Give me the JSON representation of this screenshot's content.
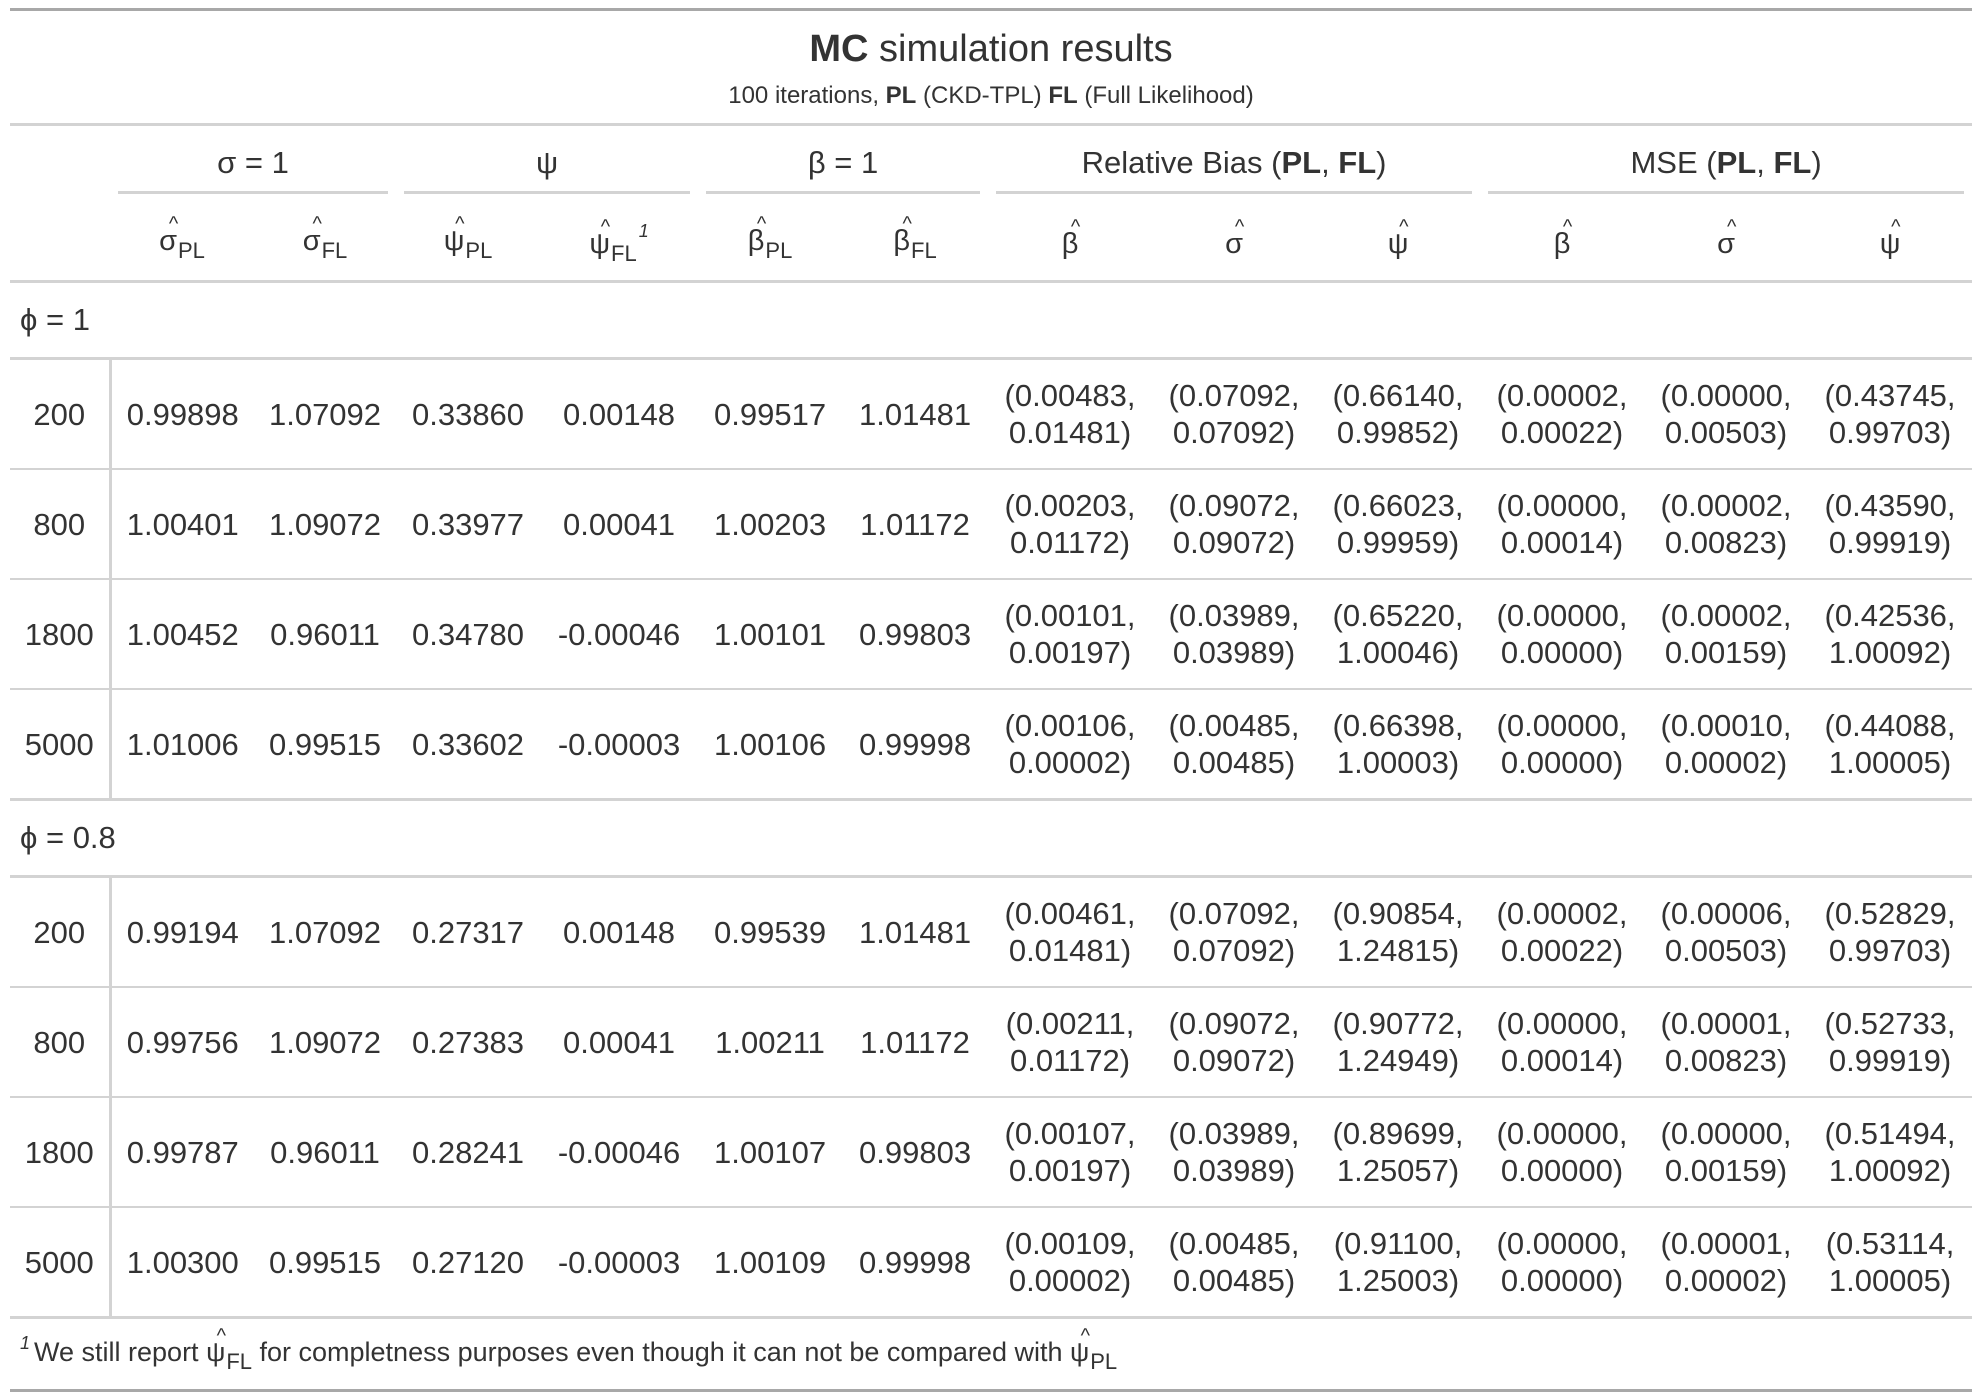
{
  "title": {
    "bold": "MC",
    "rest": " simulation results"
  },
  "subtitle": {
    "pre": "100 iterations, ",
    "pl_bold": "PL",
    "pl_desc": " (CKD-TPL) ",
    "fl_bold": "FL",
    "fl_desc": " (Full Likelihood)"
  },
  "spanners": {
    "sigma": "σ = 1",
    "psi": "ψ",
    "beta": "β = 1",
    "relbias": {
      "pre": "Relative Bias (",
      "a": "PL",
      "sep": ", ",
      "b": "FL",
      "post": ")"
    },
    "mse": {
      "pre": "MSE (",
      "a": "PL",
      "sep": ", ",
      "b": "FL",
      "post": ")"
    }
  },
  "columns": {
    "sigma_pl": {
      "sym": "σ",
      "sub": "PL"
    },
    "sigma_fl": {
      "sym": "σ",
      "sub": "FL"
    },
    "psi_pl": {
      "sym": "ψ",
      "sub": "PL"
    },
    "psi_fl": {
      "sym": "ψ",
      "sub": "FL",
      "sup": "1"
    },
    "beta_pl": {
      "sym": "β",
      "sub": "PL"
    },
    "beta_fl": {
      "sym": "β",
      "sub": "FL"
    },
    "rb_beta": "β",
    "rb_sigma": "σ",
    "rb_psi": "ψ",
    "mse_beta": "β",
    "mse_sigma": "σ",
    "mse_psi": "ψ"
  },
  "groups": [
    {
      "label": "ϕ = 1",
      "rows": [
        {
          "n": "200",
          "c": [
            "0.99898",
            "1.07092",
            "0.33860",
            "0.00148",
            "0.99517",
            "1.01481"
          ],
          "p": [
            [
              "(0.00483,",
              "0.01481)"
            ],
            [
              "(0.07092,",
              "0.07092)"
            ],
            [
              "(0.66140,",
              "0.99852)"
            ],
            [
              "(0.00002,",
              "0.00022)"
            ],
            [
              "(0.00000,",
              "0.00503)"
            ],
            [
              "(0.43745,",
              "0.99703)"
            ]
          ]
        },
        {
          "n": "800",
          "c": [
            "1.00401",
            "1.09072",
            "0.33977",
            "0.00041",
            "1.00203",
            "1.01172"
          ],
          "p": [
            [
              "(0.00203,",
              "0.01172)"
            ],
            [
              "(0.09072,",
              "0.09072)"
            ],
            [
              "(0.66023,",
              "0.99959)"
            ],
            [
              "(0.00000,",
              "0.00014)"
            ],
            [
              "(0.00002,",
              "0.00823)"
            ],
            [
              "(0.43590,",
              "0.99919)"
            ]
          ]
        },
        {
          "n": "1800",
          "c": [
            "1.00452",
            "0.96011",
            "0.34780",
            "-0.00046",
            "1.00101",
            "0.99803"
          ],
          "p": [
            [
              "(0.00101,",
              "0.00197)"
            ],
            [
              "(0.03989,",
              "0.03989)"
            ],
            [
              "(0.65220,",
              "1.00046)"
            ],
            [
              "(0.00000,",
              "0.00000)"
            ],
            [
              "(0.00002,",
              "0.00159)"
            ],
            [
              "(0.42536,",
              "1.00092)"
            ]
          ]
        },
        {
          "n": "5000",
          "c": [
            "1.01006",
            "0.99515",
            "0.33602",
            "-0.00003",
            "1.00106",
            "0.99998"
          ],
          "p": [
            [
              "(0.00106,",
              "0.00002)"
            ],
            [
              "(0.00485,",
              "0.00485)"
            ],
            [
              "(0.66398,",
              "1.00003)"
            ],
            [
              "(0.00000,",
              "0.00000)"
            ],
            [
              "(0.00010,",
              "0.00002)"
            ],
            [
              "(0.44088,",
              "1.00005)"
            ]
          ]
        }
      ]
    },
    {
      "label": "ϕ = 0.8",
      "rows": [
        {
          "n": "200",
          "c": [
            "0.99194",
            "1.07092",
            "0.27317",
            "0.00148",
            "0.99539",
            "1.01481"
          ],
          "p": [
            [
              "(0.00461,",
              "0.01481)"
            ],
            [
              "(0.07092,",
              "0.07092)"
            ],
            [
              "(0.90854,",
              "1.24815)"
            ],
            [
              "(0.00002,",
              "0.00022)"
            ],
            [
              "(0.00006,",
              "0.00503)"
            ],
            [
              "(0.52829,",
              "0.99703)"
            ]
          ]
        },
        {
          "n": "800",
          "c": [
            "0.99756",
            "1.09072",
            "0.27383",
            "0.00041",
            "1.00211",
            "1.01172"
          ],
          "p": [
            [
              "(0.00211,",
              "0.01172)"
            ],
            [
              "(0.09072,",
              "0.09072)"
            ],
            [
              "(0.90772,",
              "1.24949)"
            ],
            [
              "(0.00000,",
              "0.00014)"
            ],
            [
              "(0.00001,",
              "0.00823)"
            ],
            [
              "(0.52733,",
              "0.99919)"
            ]
          ]
        },
        {
          "n": "1800",
          "c": [
            "0.99787",
            "0.96011",
            "0.28241",
            "-0.00046",
            "1.00107",
            "0.99803"
          ],
          "p": [
            [
              "(0.00107,",
              "0.00197)"
            ],
            [
              "(0.03989,",
              "0.03989)"
            ],
            [
              "(0.89699,",
              "1.25057)"
            ],
            [
              "(0.00000,",
              "0.00000)"
            ],
            [
              "(0.00000,",
              "0.00159)"
            ],
            [
              "(0.51494,",
              "1.00092)"
            ]
          ]
        },
        {
          "n": "5000",
          "c": [
            "1.00300",
            "0.99515",
            "0.27120",
            "-0.00003",
            "1.00109",
            "0.99998"
          ],
          "p": [
            [
              "(0.00109,",
              "0.00002)"
            ],
            [
              "(0.00485,",
              "0.00485)"
            ],
            [
              "(0.91100,",
              "1.25003)"
            ],
            [
              "(0.00000,",
              "0.00000)"
            ],
            [
              "(0.00001,",
              "0.00002)"
            ],
            [
              "(0.53114,",
              "1.00005)"
            ]
          ]
        }
      ]
    }
  ],
  "footnote": {
    "mark": "1",
    "pre": "We still report ",
    "sym1": "ψ",
    "sub1": "FL",
    "mid": " for completness purposes even though it can not be compared with ",
    "sym2": "ψ",
    "sub2": "PL"
  }
}
